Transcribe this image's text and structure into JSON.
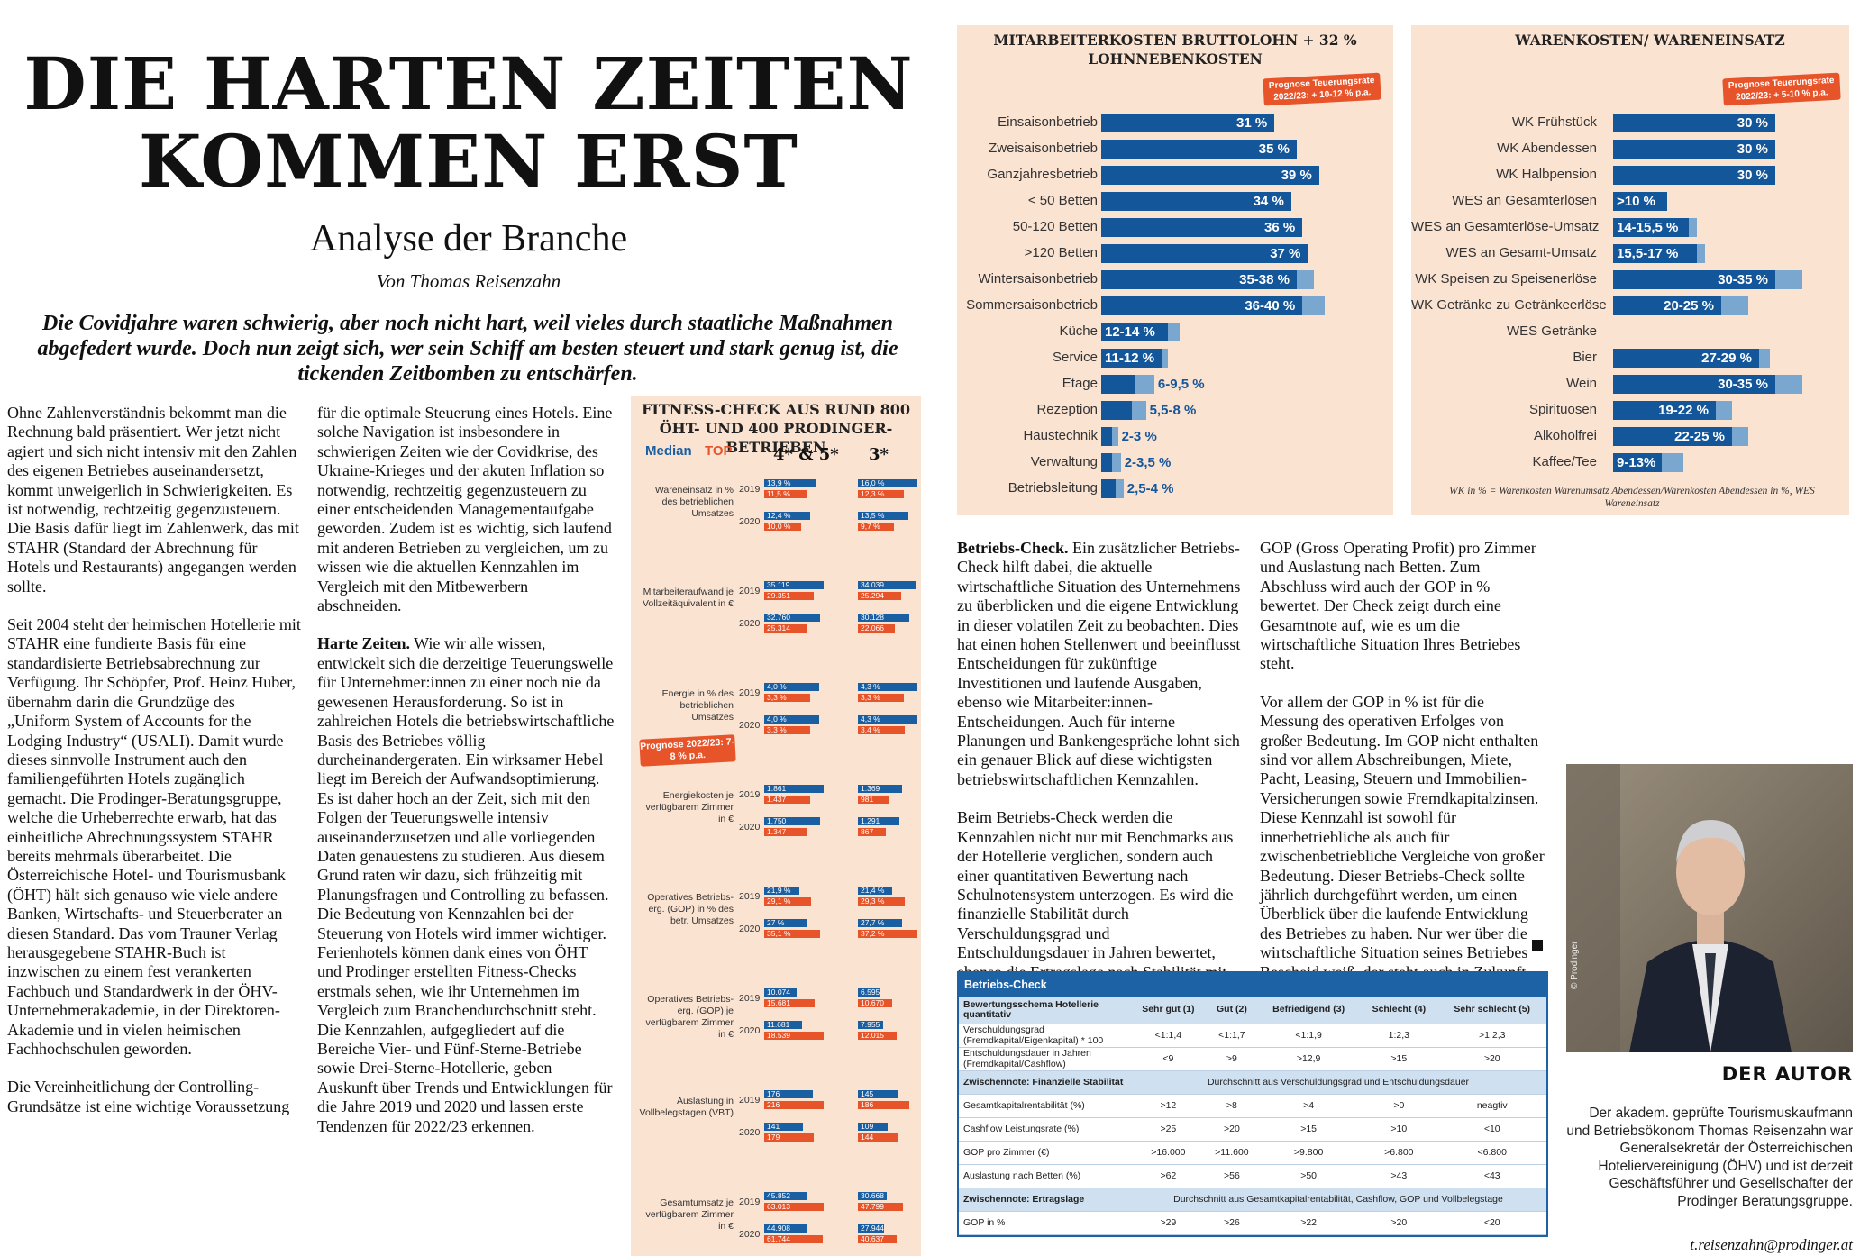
{
  "article": {
    "title_line1": "DIE HARTEN ZEITEN",
    "title_line2": "KOMMEN ERST",
    "subtitle": "Analyse der Branche",
    "byline": "Von Thomas Reisenzahn",
    "lead": "Die Covidjahre waren schwierig, aber noch nicht hart, weil vieles durch staatliche Maßnahmen abgefedert wurde. Doch nun zeigt sich, wer sein Schiff am besten steuert und stark genug ist, die tickenden Zeitbomben zu entschärfen.",
    "col1": [
      "Ohne Zahlenverständnis bekommt man die Rechnung bald präsentiert. Wer jetzt nicht agiert und sich nicht intensiv mit den Zahlen des eigenen Betriebes auseinandersetzt, kommt unweigerlich in Schwierigkeiten. Es ist notwendig, rechtzeitig gegenzusteuern. Die Basis dafür liegt im Zahlenwerk, das mit STAHR (Standard der Abrechnung für Hotels und Restaurants) angegangen werden sollte.",
      "Seit 2004 steht der heimischen Hotellerie mit STAHR eine fundierte Basis für eine standardisierte Betriebsabrechnung zur Verfügung. Ihr Schöpfer, Prof. Heinz Huber, übernahm darin die Grundzüge des „Uniform System of Accounts for the Lodging Industry“ (USALI). Damit wurde dieses sinnvolle Instrument auch den familiengeführten Hotels zugänglich gemacht. Die Prodinger-Beratungsgruppe, welche die Urheberrechte erwarb, hat das einheitliche Abrechnungssystem STAHR bereits mehrmals überarbeitet. Die Österreichische Hotel- und Tourismusbank (ÖHT) hält sich genauso wie viele andere Banken, Wirtschafts- und Steuerberater an diesen Standard. Das vom Trauner Verlag herausgegebene STAHR-Buch ist inzwischen zu einem fest verankerten Fachbuch und Standardwerk in der ÖHV-Unternehmerakademie, in der Direktoren-Akademie und in vielen heimischen Fachhochschulen geworden.",
      "Die Vereinheitlichung der Controlling-Grundsätze ist eine wichtige Voraussetzung"
    ],
    "col2_p1": "für die optimale Steuerung eines Hotels. Eine solche Navigation ist insbesondere in schwierigen Zeiten wie der Covidkrise, des Ukraine-Krieges und der akuten Inflation so notwendig, rechtzeitig gegenzusteuern zu einer entscheidenden Managementaufgabe geworden. Zudem ist es wichtig, sich laufend mit anderen Betrieben zu vergleichen, um zu wissen wie die aktuellen Kennzahlen im Vergleich mit den Mitbewerbern abschneiden.",
    "col2_p2_head": "Harte Zeiten.",
    "col2_p2": " Wie wir alle wissen, entwickelt sich die derzeitige Teuerungswelle für Unternehmer:innen zu einer noch nie da gewesenen Herausforderung. So ist in zahlreichen Hotels die betriebswirtschaftliche Basis des Betriebes völlig durcheinandergeraten. Ein wirksamer Hebel liegt im Bereich der Aufwandsoptimierung. Es ist daher hoch an der Zeit, sich mit den Folgen der Teuerungswelle intensiv auseinanderzusetzen und alle vorliegenden Daten genauestens zu studieren. Aus diesem Grund raten wir dazu, sich frühzeitig mit Planungsfragen und Controlling zu befassen. Die Bedeutung von Kennzahlen bei der Steuerung von Hotels wird immer wichtiger. Ferienhotels können dank eines von ÖHT und Prodinger erstellten Fitness-Checks erstmals sehen, wie ihr Unternehmen im Vergleich zum Branchendurchschnitt steht. Die Kennzahlen, aufgegliedert auf die Bereiche Vier- und Fünf-Sterne-Betriebe sowie Drei-Sterne-Hotellerie, geben Auskunft über Trends und Entwicklungen für die Jahre 2019 und 2020 und lassen erste Tendenzen für 2022/23 erkennen.",
    "col3_p1_head": "Betriebs-Check.",
    "col3_p1": " Ein zusätzlicher Betriebs-Check hilft dabei, die aktuelle wirtschaftliche Situation des Unternehmens zu überblicken und die eigene Entwicklung in dieser volatilen Zeit zu beobachten. Dies hat einen hohen Stellenwert und beeinflusst Entscheidungen für zukünftige Investitionen und laufende Ausgaben, ebenso wie Mitarbeiter:innen-Entscheidungen. Auch für interne Planungen und Bankengespräche lohnt sich ein genauer Blick auf diese wichtigsten betriebswirtschaftlichen Kennzahlen.",
    "col3_p2": "Beim Betriebs-Check werden die Kennzahlen nicht nur mit Benchmarks aus der Hotellerie verglichen, sondern auch einer quantitativen Bewertung nach Schulnotensystem unterzogen. Es wird die finanzielle Stabilität durch Verschuldungsgrad und Entschuldungsdauer in Jahren bewertet, ebenso die Ertragslage nach Stabilität mit Gesamtkapitalrentabilität, Cashflow-Leistungsrate,",
    "col4_p1": "GOP (Gross Operating Profit) pro Zimmer und Auslastung nach Betten. Zum Abschluss wird auch der GOP in % bewertet. Der Check zeigt durch eine Gesamtnote auf, wie es um die wirtschaftliche Situation Ihres Betriebes steht.",
    "col4_p2": "Vor allem der GOP in % ist für die Messung des operativen Erfolges von großer Bedeutung. Im GOP nicht enthalten sind vor allem Abschreibungen, Miete, Pacht, Leasing, Steuern und Immobilien-Versicherungen sowie Fremdkapitalzinsen. Diese Kennzahl ist sowohl für innerbetriebliche als auch für zwischenbetriebliche Vergleiche von großer Bedeutung. Dieser Betriebs-Check sollte jährlich durchgeführt werden, um einen Überblick über die laufende Entwicklung des Betriebes zu haben. Nur wer über die wirtschaftliche Situation seines Betriebes Bescheid weiß, der steht auch in Zukunft auf der richtigen Seite."
  },
  "fitness": {
    "title": "FITNESS-CHECK AUS RUND 800 ÖHT- UND 400 PRODINGER-BETRIEBEN",
    "legend_median": "Median",
    "legend_top": "TOP",
    "col_45": "4* & 5*",
    "col_3": "3*",
    "forecast": "Prognose 2022/23: 7-8 % p.a.",
    "colors": {
      "median": "#1b5fa3",
      "top": "#e8542a"
    },
    "metrics": [
      {
        "label": "Wareneinsatz in % des betrieblichen Umsatzes",
        "y1": "2019",
        "y2": "2020",
        "a": [
          "13,9 %",
          "11,5 %",
          "12,4 %",
          "10,0 %"
        ],
        "b": [
          "16,0 %",
          "12,3 %",
          "13,5 %",
          "9,7 %"
        ],
        "av": [
          13.9,
          11.5,
          12.4,
          10.0
        ],
        "bv": [
          16.0,
          12.3,
          13.5,
          9.7
        ]
      },
      {
        "label": "Mitarbeiteraufwand je Vollzeitäquivalent in €",
        "y1": "2019",
        "y2": "2020",
        "a": [
          "35.119",
          "29.351",
          "32.760",
          "25.314"
        ],
        "b": [
          "34.039",
          "25.294",
          "30.128",
          "22.066"
        ],
        "av": [
          35119,
          29351,
          32760,
          25314
        ],
        "bv": [
          34039,
          25294,
          30128,
          22066
        ]
      },
      {
        "label": "Energie in % des betrieblichen Umsatzes",
        "y1": "2019",
        "y2": "2020",
        "a": [
          "4,0 %",
          "3,3 %",
          "4,0 %",
          "3,3 %"
        ],
        "b": [
          "4,3 %",
          "3,3 %",
          "4,3 %",
          "3,4 %"
        ],
        "av": [
          4.0,
          3.3,
          4.0,
          3.3
        ],
        "bv": [
          4.3,
          3.3,
          4.3,
          3.4
        ]
      },
      {
        "label": "Energiekosten je verfügbarem Zimmer in €",
        "y1": "2019",
        "y2": "2020",
        "a": [
          "1.861",
          "1.437",
          "1.750",
          "1.347"
        ],
        "b": [
          "1.369",
          "981",
          "1.291",
          "867"
        ],
        "av": [
          1861,
          1437,
          1750,
          1347
        ],
        "bv": [
          1369,
          981,
          1291,
          867
        ]
      },
      {
        "label": "Operatives Betriebs-erg. (GOP) in % des betr. Umsatzes",
        "y1": "2019",
        "y2": "2020",
        "a": [
          "21,9 %",
          "29,1 %",
          "27 %",
          "35,1 %"
        ],
        "b": [
          "21,4 %",
          "29,3 %",
          "27,7 %",
          "37,2 %"
        ],
        "av": [
          21.9,
          29.1,
          27,
          35.1
        ],
        "bv": [
          21.4,
          29.3,
          27.7,
          37.2
        ]
      },
      {
        "label": "Operatives Betriebs-erg. (GOP) je verfügbarem Zimmer in €",
        "y1": "2019",
        "y2": "2020",
        "a": [
          "10.074",
          "15.681",
          "11.681",
          "18.539"
        ],
        "b": [
          "6.595",
          "10.670",
          "7.955",
          "12.015"
        ],
        "av": [
          10074,
          15681,
          11681,
          18539
        ],
        "bv": [
          6595,
          10670,
          7955,
          12015
        ]
      },
      {
        "label": "Auslastung in Vollbelegstagen (VBT)",
        "y1": "2019",
        "y2": "2020",
        "a": [
          "176",
          "216",
          "141",
          "179"
        ],
        "b": [
          "145",
          "186",
          "109",
          "144"
        ],
        "av": [
          176,
          216,
          141,
          179
        ],
        "bv": [
          145,
          186,
          109,
          144
        ]
      },
      {
        "label": "Gesamtumsatz je verfügbarem Zimmer in €",
        "y1": "2019",
        "y2": "2020",
        "a": [
          "45.852",
          "63.013",
          "44.908",
          "61.744"
        ],
        "b": [
          "30.668",
          "47.799",
          "27.944",
          "40.637"
        ],
        "av": [
          45852,
          63013,
          44908,
          61744
        ],
        "bv": [
          30668,
          47799,
          27944,
          40637
        ]
      }
    ]
  },
  "chart_data": [
    {
      "type": "bar",
      "title": "MITARBEITERKOSTEN BRUTTOLOHN + 32 % LOHNNEBENKOSTEN",
      "forecast": "Prognose Teuerungsrate 2022/23: + 10-12 % p.a.",
      "categories": [
        "Einsaisonbetrieb",
        "Zweisaisonbetrieb",
        "Ganzjahresbetrieb",
        "< 50 Betten",
        "50-120 Betten",
        ">120 Betten",
        "Wintersaisonbetrieb",
        "Sommersaisonbetrieb",
        "Küche",
        "Service",
        "Etage",
        "Rezeption",
        "Haustechnik",
        "Verwaltung",
        "Betriebsleitung"
      ],
      "labels": [
        "31 %",
        "35 %",
        "39 %",
        "34 %",
        "36 %",
        "37 %",
        "35-38 %",
        "36-40 %",
        "12-14 %",
        "11-12 %",
        "6-9,5 %",
        "5,5-8 %",
        "2-3 %",
        "2-3,5 %",
        "2,5-4 %"
      ],
      "low": [
        31,
        35,
        39,
        34,
        36,
        37,
        35,
        36,
        12,
        11,
        6,
        5.5,
        2,
        2,
        2.5
      ],
      "high": [
        31,
        35,
        39,
        34,
        36,
        37,
        38,
        40,
        14,
        12,
        9.5,
        8,
        3,
        3.5,
        4
      ],
      "xlim": [
        0,
        45
      ]
    },
    {
      "type": "bar",
      "title": "WARENKOSTEN/ WARENEINSATZ",
      "forecast": "Prognose Teuerungsrate 2022/23: + 5-10 % p.a.",
      "categories": [
        "WK Frühstück",
        "WK Abendessen",
        "WK Halbpension",
        "WES an Gesamterlösen",
        "WES an Gesamterlöse-Umsatz",
        "WES an Gesamt-Umsatz",
        "WK Speisen zu Speisenerlöse",
        "WK Getränke zu Getränkeerlöse",
        "WES Getränke",
        "Bier",
        "Wein",
        "Spirituosen",
        "Alkoholfrei",
        "Kaffee/Tee"
      ],
      "labels": [
        "30 %",
        "30 %",
        "30 %",
        ">10 %",
        "14-15,5 %",
        "15,5-17 %",
        "30-35 %",
        "20-25 %",
        "",
        "27-29 %",
        "30-35 %",
        "19-22 %",
        "22-25 %",
        "9-13%"
      ],
      "low": [
        30,
        30,
        30,
        10,
        14,
        15.5,
        30,
        20,
        null,
        27,
        30,
        19,
        22,
        9
      ],
      "high": [
        30,
        30,
        30,
        10,
        15.5,
        17,
        35,
        25,
        null,
        29,
        35,
        22,
        25,
        13
      ],
      "xlim": [
        0,
        45
      ],
      "note": "WK in % = Warenkosten Warenumsatz Abendessen/Warenkosten Abendessen in %, WES Wareneinsatz"
    }
  ],
  "betriebscheck": {
    "title": "Betriebs-Check",
    "header": [
      "Bewertungsschema Hotellerie quantitativ",
      "Sehr gut (1)",
      "Gut (2)",
      "Befriedigend (3)",
      "Schlecht (4)",
      "Sehr schlecht (5)"
    ],
    "rows1": [
      [
        "Verschuldungsgrad (Fremdkapital/Eigenkapital) * 100",
        "<1:1,4",
        "<1:1,7",
        "<1:1,9",
        "1:2,3",
        ">1:2,3"
      ],
      [
        "Entschuldungsdauer in Jahren (Fremdkapital/Cashflow)",
        "<9",
        ">9",
        ">12,9",
        ">15",
        ">20"
      ]
    ],
    "band1": [
      "Zwischennote: Finanzielle Stabilität",
      "Durchschnitt aus Verschuldungsgrad und Entschuldungsdauer"
    ],
    "rows2": [
      [
        "Gesamtkapitalrentabilität (%)",
        ">12",
        ">8",
        ">4",
        ">0",
        "neagtiv"
      ],
      [
        "Cashflow Leistungsrate (%)",
        ">25",
        ">20",
        ">15",
        ">10",
        "<10"
      ],
      [
        "GOP pro Zimmer (€)",
        ">16.000",
        ">11.600",
        ">9.800",
        ">6.800",
        "<6.800"
      ],
      [
        "Auslastung nach Betten (%)",
        ">62",
        ">56",
        ">50",
        ">43",
        "<43"
      ]
    ],
    "band2": [
      "Zwischennote: Ertragslage",
      "Durchschnitt aus Gesamtkapitalrentabilität, Cashflow, GOP und Vollbelegstage"
    ],
    "rows3": [
      [
        "GOP in %",
        ">29",
        ">26",
        ">22",
        ">20",
        "<20"
      ]
    ]
  },
  "author": {
    "heading": "DER AUTOR",
    "text": "Der akadem. geprüfte Tourismuskaufmann und Betriebsökonom Thomas Reisenzahn war Generalsekretär der Österreichischen Hoteliervereinigung (ÖHV) und ist derzeit Geschäftsführer und Gesellschafter der Prodinger Beratungsgruppe.",
    "email": "t.reisenzahn@prodinger.at",
    "photo_credit": "© Prodinger"
  }
}
